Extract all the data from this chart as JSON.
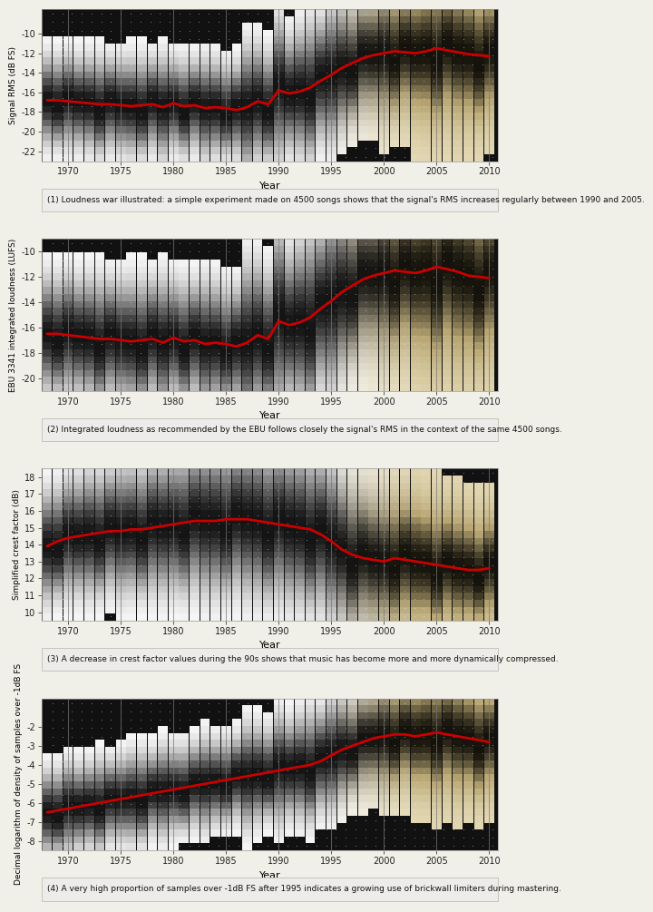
{
  "years": [
    1968,
    1969,
    1970,
    1971,
    1972,
    1973,
    1974,
    1975,
    1976,
    1977,
    1978,
    1979,
    1980,
    1981,
    1982,
    1983,
    1984,
    1985,
    1986,
    1987,
    1988,
    1989,
    1990,
    1991,
    1992,
    1993,
    1994,
    1995,
    1996,
    1997,
    1998,
    1999,
    2000,
    2001,
    2002,
    2003,
    2004,
    2005,
    2006,
    2007,
    2008,
    2009,
    2010
  ],
  "rms_mean": [
    -16.8,
    -16.8,
    -16.9,
    -17.0,
    -17.1,
    -17.2,
    -17.2,
    -17.3,
    -17.4,
    -17.3,
    -17.2,
    -17.5,
    -17.1,
    -17.4,
    -17.3,
    -17.6,
    -17.5,
    -17.6,
    -17.8,
    -17.5,
    -16.9,
    -17.2,
    -15.8,
    -16.1,
    -15.9,
    -15.5,
    -14.8,
    -14.2,
    -13.5,
    -13.0,
    -12.5,
    -12.2,
    -12.0,
    -11.8,
    -11.9,
    -12.0,
    -11.8,
    -11.5,
    -11.7,
    -11.9,
    -12.1,
    -12.2,
    -12.3
  ],
  "rms_spread": [
    2.5,
    2.5,
    2.6,
    2.5,
    2.6,
    2.7,
    2.6,
    2.6,
    2.7,
    2.7,
    2.6,
    2.8,
    2.5,
    2.6,
    2.5,
    2.7,
    2.6,
    2.5,
    2.6,
    3.5,
    3.2,
    3.0,
    4.0,
    3.2,
    3.5,
    3.8,
    3.5,
    3.8,
    3.6,
    3.4,
    3.5,
    3.5,
    4.0,
    4.0,
    4.0,
    4.2,
    4.5,
    4.8,
    4.5,
    4.5,
    4.3,
    4.2,
    4.0
  ],
  "rms_ylim": [
    -23.0,
    -7.5
  ],
  "rms_yticks": [
    -22,
    -20,
    -18,
    -16,
    -14,
    -12,
    -10
  ],
  "rms_ylabel": "Signal RMS (dB FS)",
  "lufs_mean": [
    -16.5,
    -16.5,
    -16.6,
    -16.7,
    -16.8,
    -16.9,
    -16.9,
    -17.0,
    -17.1,
    -17.0,
    -16.9,
    -17.2,
    -16.8,
    -17.1,
    -17.0,
    -17.3,
    -17.2,
    -17.3,
    -17.5,
    -17.2,
    -16.6,
    -16.9,
    -15.5,
    -15.8,
    -15.6,
    -15.2,
    -14.5,
    -13.9,
    -13.2,
    -12.7,
    -12.2,
    -11.9,
    -11.7,
    -11.5,
    -11.6,
    -11.7,
    -11.5,
    -11.2,
    -11.4,
    -11.6,
    -11.9,
    -12.0,
    -12.1
  ],
  "lufs_spread": [
    2.5,
    2.5,
    2.6,
    2.5,
    2.6,
    2.7,
    2.6,
    2.6,
    2.7,
    2.7,
    2.6,
    2.8,
    2.5,
    2.6,
    2.5,
    2.7,
    2.6,
    2.5,
    2.6,
    3.5,
    3.2,
    3.0,
    4.0,
    3.2,
    3.5,
    3.8,
    3.5,
    3.8,
    3.6,
    3.4,
    3.5,
    3.5,
    4.0,
    4.0,
    4.0,
    4.2,
    4.5,
    4.8,
    4.5,
    4.5,
    4.3,
    4.2,
    4.0
  ],
  "lufs_ylim": [
    -21.0,
    -9.0
  ],
  "lufs_yticks": [
    -20,
    -18,
    -16,
    -14,
    -12,
    -10
  ],
  "lufs_ylabel": "EBU 3341 integrated loudness (LUFS)",
  "crest_mean": [
    13.9,
    14.2,
    14.4,
    14.5,
    14.6,
    14.7,
    14.8,
    14.8,
    14.9,
    14.9,
    15.0,
    15.1,
    15.2,
    15.3,
    15.4,
    15.4,
    15.4,
    15.5,
    15.5,
    15.5,
    15.4,
    15.3,
    15.2,
    15.1,
    15.0,
    14.9,
    14.6,
    14.2,
    13.7,
    13.4,
    13.2,
    13.1,
    13.0,
    13.2,
    13.1,
    13.0,
    12.9,
    12.8,
    12.7,
    12.6,
    12.5,
    12.5,
    12.6
  ],
  "crest_spread": [
    1.8,
    1.8,
    1.9,
    1.9,
    2.0,
    2.0,
    2.0,
    2.1,
    2.1,
    2.1,
    2.2,
    2.2,
    2.2,
    2.3,
    2.3,
    2.4,
    2.4,
    2.4,
    2.4,
    2.5,
    2.5,
    2.5,
    2.5,
    2.5,
    2.5,
    2.5,
    2.5,
    2.5,
    2.4,
    2.4,
    2.4,
    2.3,
    2.3,
    2.4,
    2.4,
    2.4,
    2.3,
    2.3,
    2.2,
    2.2,
    2.1,
    2.0,
    2.0
  ],
  "crest_ylim": [
    9.5,
    18.5
  ],
  "crest_yticks": [
    10,
    11,
    12,
    13,
    14,
    15,
    16,
    17,
    18
  ],
  "crest_ylabel": "Simplified crest factor (dB)",
  "over_mean": [
    -6.5,
    -6.4,
    -6.3,
    -6.2,
    -6.1,
    -6.0,
    -5.9,
    -5.8,
    -5.7,
    -5.6,
    -5.5,
    -5.4,
    -5.3,
    -5.2,
    -5.1,
    -5.0,
    -4.9,
    -4.8,
    -4.7,
    -4.6,
    -4.5,
    -4.4,
    -4.3,
    -4.2,
    -4.1,
    -4.0,
    -3.8,
    -3.5,
    -3.2,
    -3.0,
    -2.8,
    -2.6,
    -2.5,
    -2.4,
    -2.4,
    -2.5,
    -2.4,
    -2.3,
    -2.4,
    -2.5,
    -2.6,
    -2.7,
    -2.8
  ],
  "over_spread": [
    1.2,
    1.2,
    1.3,
    1.2,
    1.2,
    1.3,
    1.2,
    1.2,
    1.3,
    1.3,
    1.2,
    1.3,
    1.2,
    1.2,
    1.2,
    1.3,
    1.2,
    1.2,
    1.2,
    1.5,
    1.4,
    1.3,
    1.6,
    1.4,
    1.5,
    1.6,
    1.5,
    1.6,
    1.5,
    1.4,
    1.5,
    1.5,
    1.7,
    1.7,
    1.7,
    1.8,
    1.9,
    2.0,
    1.9,
    1.9,
    1.8,
    1.8,
    1.7
  ],
  "over_ylim": [
    -8.5,
    -0.5
  ],
  "over_yticks": [
    -8,
    -7,
    -6,
    -5,
    -4,
    -3,
    -2
  ],
  "over_ylabel": "Decimal logarithm of density of samples over -1dB FS",
  "captions": [
    "(1) Loudness war illustrated: a simple experiment made on 4500 songs shows that the signal's RMS increases regularly between 1990 and 2005.",
    "(2) Integrated loudness as recommended by the EBU follows closely the signal's RMS in the context of the same 4500 songs.",
    "(3) A decrease in crest factor values during the 90s shows that music has become more and more dynamically compressed.",
    "(4) A very high proportion of samples over -1dB FS after 1995 indicates a growing use of brickwall limiters during mastering."
  ],
  "vlines_x": [
    1970,
    1975,
    1980,
    1985,
    1990,
    1995,
    2000,
    2005,
    2010
  ],
  "xlim": [
    1967.5,
    2010.8
  ],
  "xticks": [
    1970,
    1975,
    1980,
    1985,
    1990,
    1995,
    2000,
    2005,
    2010
  ],
  "xlabel": "Year",
  "page_bg": "#f0efe8",
  "caption_bg": "#edecea",
  "plot_outer_bg": "#e8e7e0"
}
